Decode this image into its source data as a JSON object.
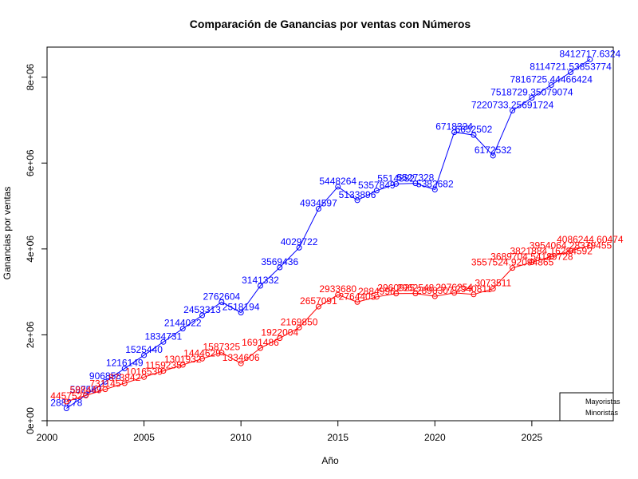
{
  "chart_data": {
    "type": "line",
    "title": "Comparación de Ganancias por ventas con Números",
    "xlabel": "Año",
    "ylabel": "Ganancias por ventas",
    "xlim": [
      2000,
      2029.2
    ],
    "ylim": [
      0,
      8700000
    ],
    "x_ticks": [
      2000,
      2005,
      2010,
      2015,
      2020,
      2025
    ],
    "y_ticks": [
      0,
      2000000,
      4000000,
      6000000,
      8000000
    ],
    "y_tick_labels": [
      "0e+00",
      "2e+06",
      "4e+06",
      "6e+06",
      "8e+06"
    ],
    "legend_position": "bottom-right",
    "grid": false,
    "series": [
      {
        "name": "Mayoristas",
        "color": "#0000ff",
        "x": [
          2001,
          2002,
          2003,
          2004,
          2005,
          2006,
          2007,
          2008,
          2009,
          2010,
          2011,
          2012,
          2013,
          2014,
          2015,
          2016,
          2017,
          2018,
          2019,
          2020,
          2021,
          2022,
          2023,
          2024,
          2025,
          2026,
          2027,
          2028
        ],
        "values": [
          288278,
          597567,
          906858,
          1216149,
          1525440,
          1834731,
          2144022,
          2453313,
          2762604,
          2518194,
          3141332,
          3569436,
          4029722,
          4934597,
          5448264,
          5133896,
          5357849,
          5514882,
          5527328,
          5382682,
          6718324,
          6652502,
          6172532,
          7220733.25691724,
          7518729.35079074,
          7816725.44466424,
          8114721.53853774,
          8412717.6324
        ],
        "labels": [
          "288278",
          "597567",
          "906858",
          "1216149",
          "1525440",
          "1834731",
          "2144022",
          "2453313",
          "2762604",
          "2518194",
          "3141332",
          "3569436",
          "4029722",
          "4934597",
          "5448264",
          "5133896",
          "5357849",
          "5514882",
          "5527328",
          "5382682",
          "6718324",
          "6652502",
          "6172532",
          "7220733.25691724",
          "7518729.35079074",
          "7816725.44466424",
          "8114721.53853774",
          "8412717.6324"
        ]
      },
      {
        "name": "Minoristas",
        "color": "#ff0000",
        "x": [
          2001,
          2002,
          2003,
          2004,
          2005,
          2006,
          2007,
          2008,
          2009,
          2010,
          2011,
          2012,
          2013,
          2014,
          2015,
          2016,
          2017,
          2018,
          2019,
          2020,
          2021,
          2022,
          2023,
          2024,
          2025,
          2026,
          2027,
          2028
        ],
        "values": [
          445752,
          588449,
          731145,
          873842,
          1016539,
          1159235,
          1301932,
          1444629,
          1587325,
          1334606,
          1691486,
          1922004,
          2169850,
          2657091,
          2933680,
          2764405,
          2884996,
          2960925,
          2962548,
          2898307,
          2976254,
          2940811,
          3073511,
          3557524.92094865,
          3689704.54189728,
          3821884.16284592,
          3954064.28379455,
          4086244.60474
        ],
        "labels": [
          "445752",
          "588449",
          "731145",
          "873842",
          "1016539",
          "1159235",
          "1301932",
          "1444629",
          "1587325",
          "1334606",
          "1691486",
          "1922004",
          "2169850",
          "2657091",
          "2933680",
          "2764405",
          "2884996",
          "2960925",
          "2962548",
          "2898307",
          "2976254",
          "2940811",
          "3073511",
          "3557524.92094865",
          "3689704.54189728",
          "3821884.16284592",
          "3954064.28379455",
          "4086244.60474"
        ]
      }
    ]
  }
}
